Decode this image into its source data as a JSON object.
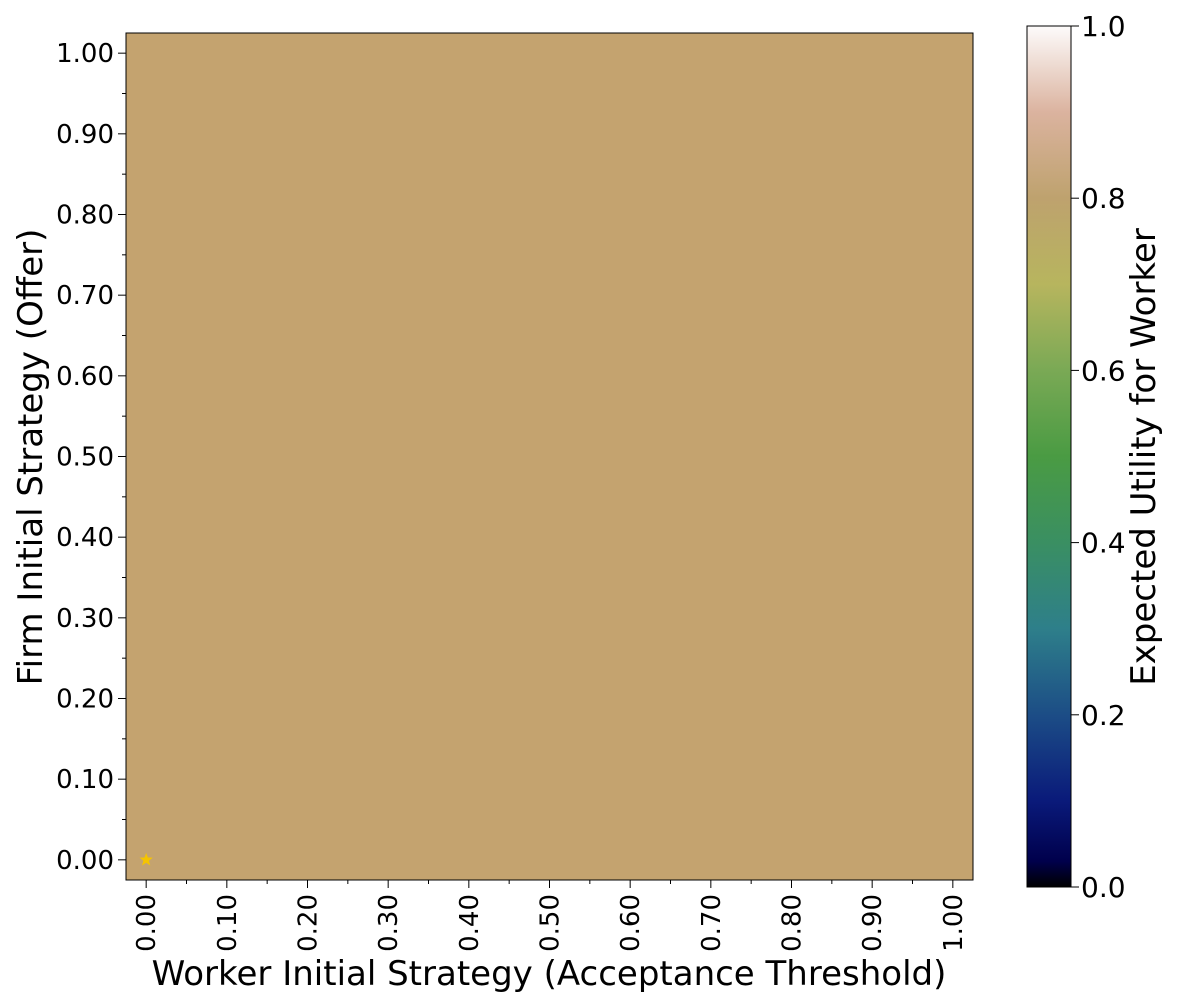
{
  "chart_data": {
    "type": "heatmap",
    "title": "",
    "xlabel": "Worker Initial Strategy (Acceptance Threshold)",
    "ylabel": "Firm Initial Strategy (Offer)",
    "x_ticks": [
      "0.00",
      "0.10",
      "0.20",
      "0.30",
      "0.40",
      "0.50",
      "0.60",
      "0.70",
      "0.80",
      "0.90",
      "1.00"
    ],
    "y_ticks": [
      "0.00",
      "0.10",
      "0.20",
      "0.30",
      "0.40",
      "0.50",
      "0.60",
      "0.70",
      "0.80",
      "0.90",
      "1.00"
    ],
    "xlim": [
      -0.025,
      1.025
    ],
    "ylim": [
      -0.025,
      1.025
    ],
    "x_tick_rotation": 90,
    "value_description": "uniform",
    "value": 0.78,
    "cell_color": "#c4a36f",
    "colormap": "gist_earth",
    "colorbar": {
      "label": "Expected Utility for Worker",
      "range": [
        0.0,
        1.0
      ],
      "ticks": [
        "0.0",
        "0.2",
        "0.4",
        "0.6",
        "0.8",
        "1.0"
      ],
      "stops": [
        {
          "v": 0.0,
          "color": "#000000"
        },
        {
          "v": 0.03,
          "color": "#00004c"
        },
        {
          "v": 0.1,
          "color": "#0a1a7a"
        },
        {
          "v": 0.2,
          "color": "#1c4d86"
        },
        {
          "v": 0.3,
          "color": "#2e7f8a"
        },
        {
          "v": 0.4,
          "color": "#3a8f62"
        },
        {
          "v": 0.5,
          "color": "#4a9b43"
        },
        {
          "v": 0.6,
          "color": "#7aa955"
        },
        {
          "v": 0.7,
          "color": "#b7b55e"
        },
        {
          "v": 0.8,
          "color": "#bea26e"
        },
        {
          "v": 0.9,
          "color": "#dbb39f"
        },
        {
          "v": 1.0,
          "color": "#fdfbfb"
        }
      ]
    },
    "marker": {
      "shape": "star",
      "x": 0.0,
      "y": 0.0,
      "color": "#f5c400"
    }
  }
}
